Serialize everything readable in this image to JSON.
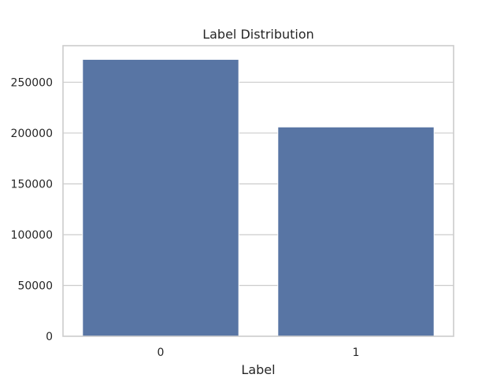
{
  "chart_data": {
    "type": "bar",
    "title": "Label Distribution",
    "xlabel": "Label",
    "ylabel": "",
    "categories": [
      "0",
      "1"
    ],
    "values": [
      272500,
      206000
    ],
    "ylim": [
      0,
      286000
    ],
    "yticks": [
      0,
      50000,
      100000,
      150000,
      200000,
      250000
    ],
    "ytick_labels": [
      "0",
      "50000",
      "100000",
      "150000",
      "200000",
      "250000"
    ],
    "grid": "horizontal",
    "bar_color": "#5875a4"
  }
}
